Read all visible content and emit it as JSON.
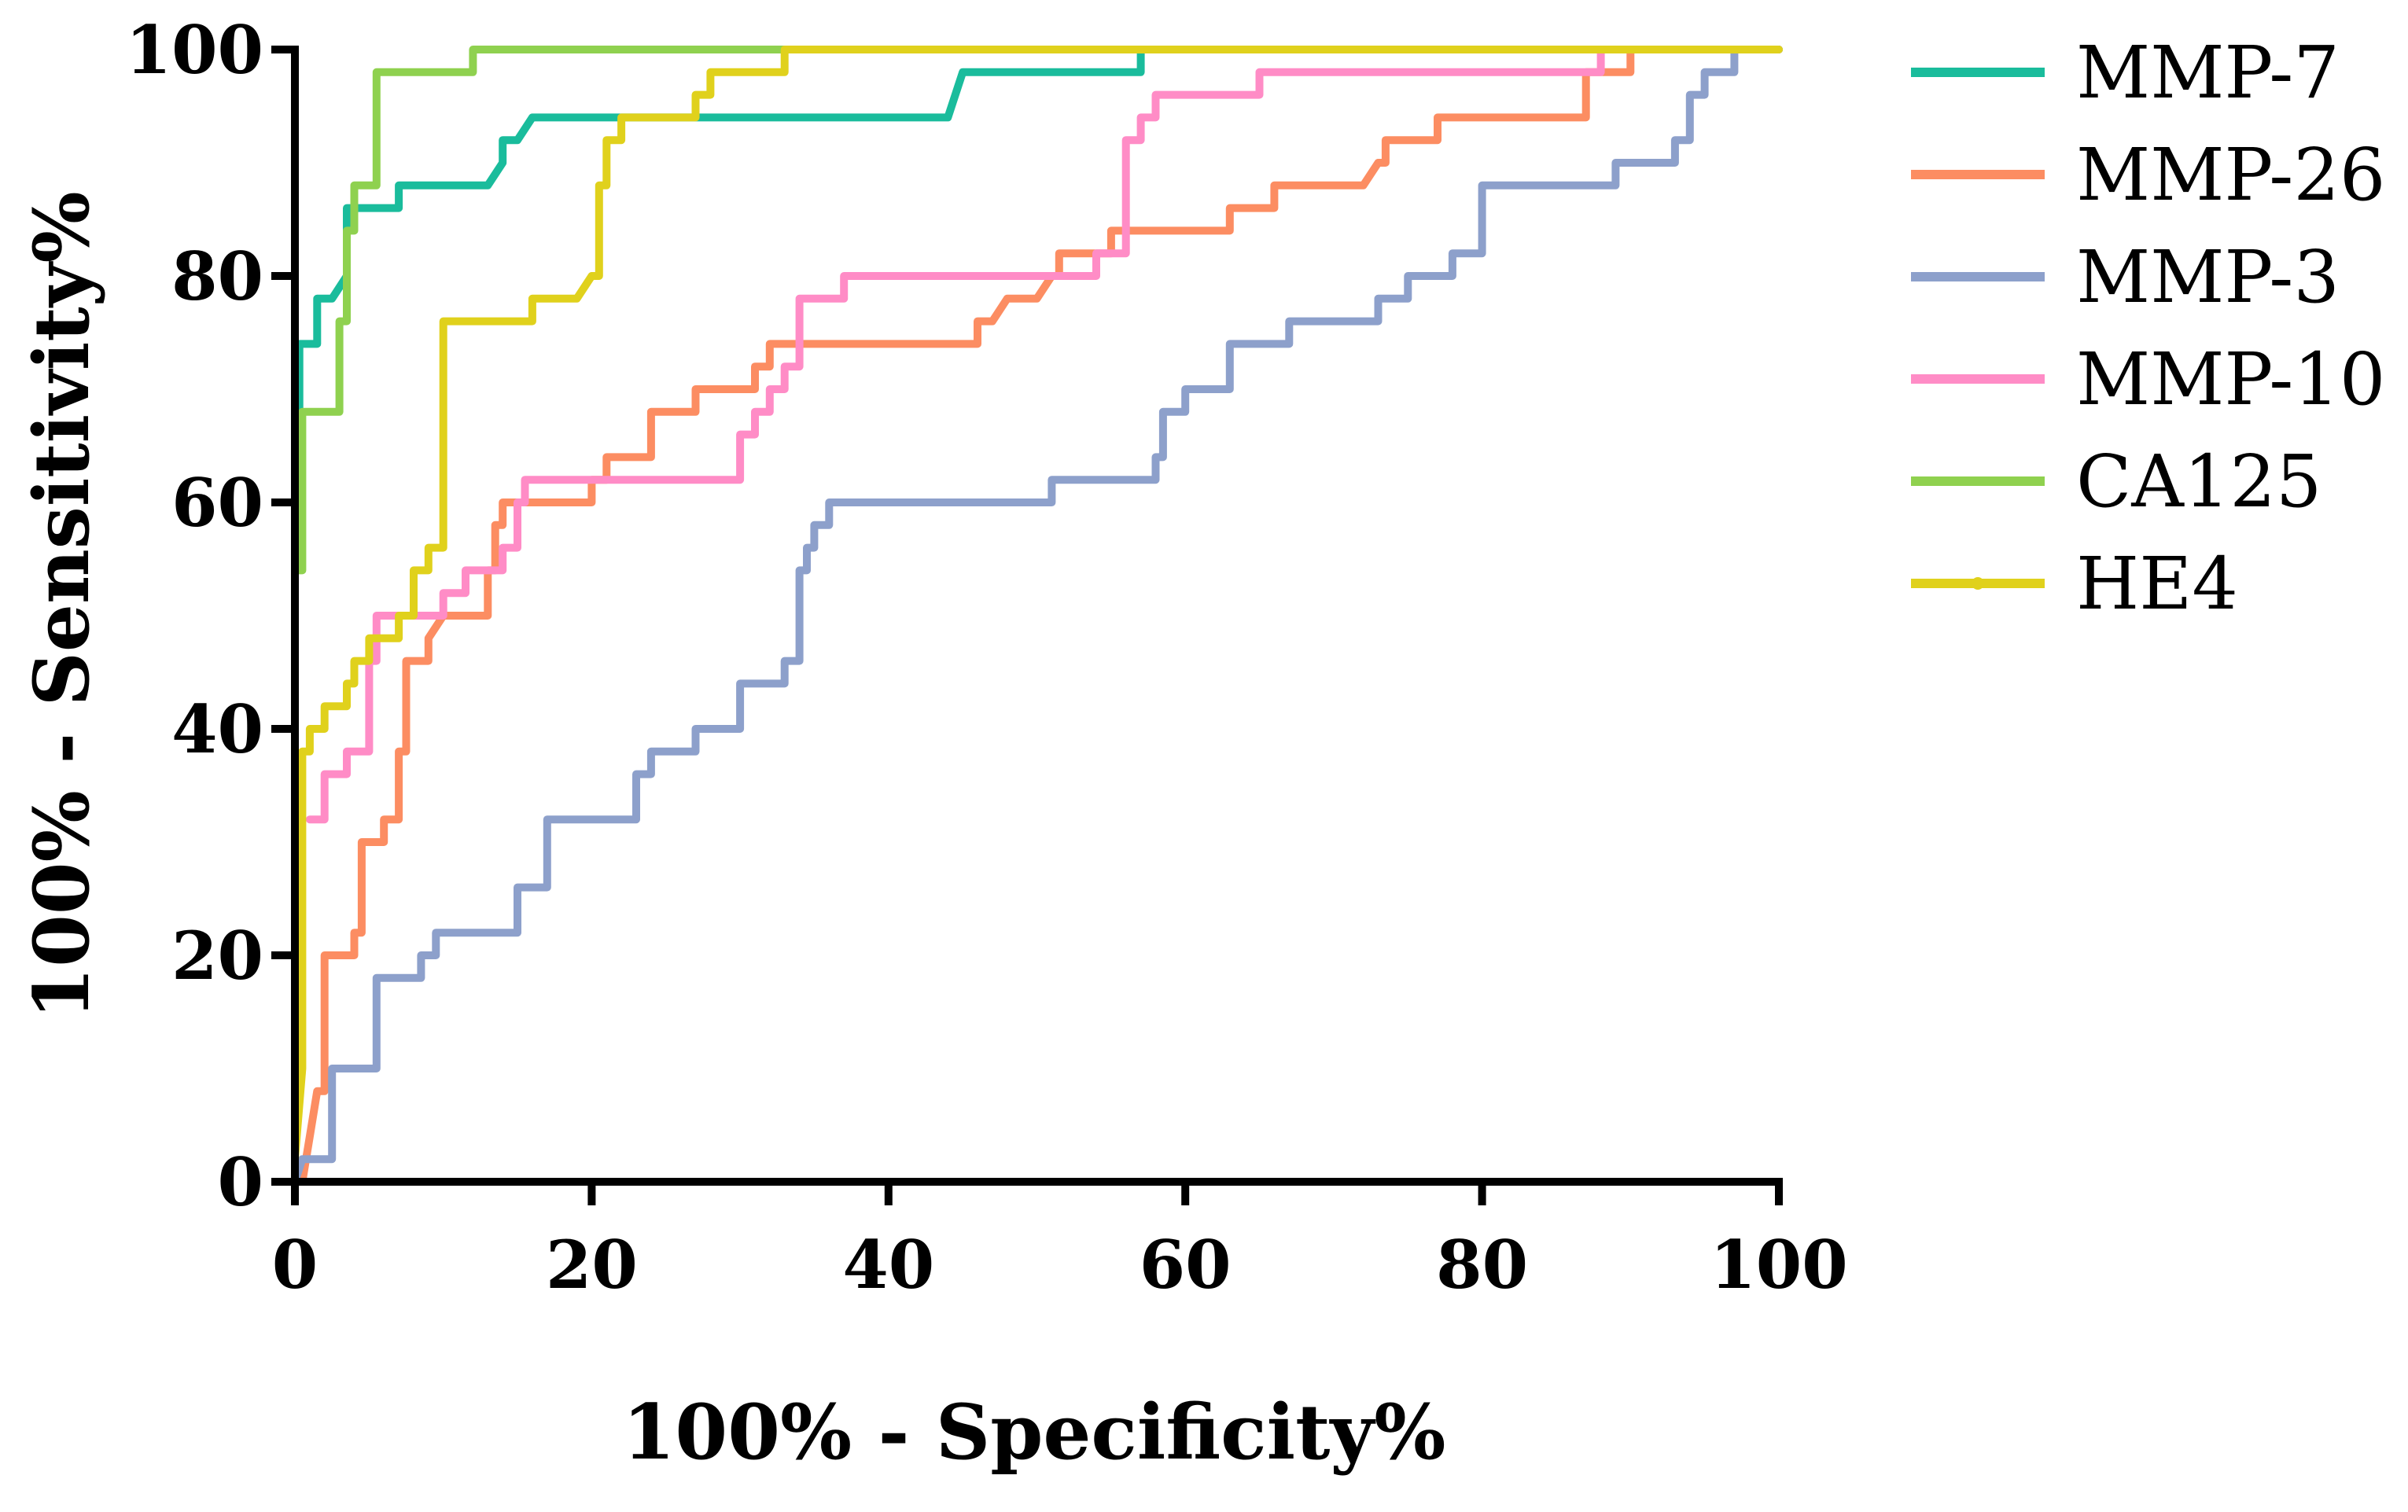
{
  "chart_data": {
    "type": "line",
    "xlabel": "100% - Specificity%",
    "ylabel": "100% - Sensitivity%",
    "xlim": [
      0,
      100
    ],
    "ylim": [
      0,
      100
    ],
    "xticks": [
      "0",
      "20",
      "40",
      "60",
      "80",
      "100"
    ],
    "yticks": [
      "0",
      "20",
      "40",
      "60",
      "80",
      "100"
    ],
    "grid": false,
    "legend_position": "right",
    "series": [
      {
        "name": "MMP-7",
        "color": "#1abc9c",
        "points": [
          [
            0,
            55
          ],
          [
            0,
            64
          ],
          [
            0,
            64
          ],
          [
            0.3,
            64
          ],
          [
            0.3,
            74
          ],
          [
            1.5,
            74
          ],
          [
            1.5,
            78
          ],
          [
            2.5,
            78
          ],
          [
            3.5,
            80
          ],
          [
            3.5,
            86
          ],
          [
            6,
            86
          ],
          [
            7,
            86
          ],
          [
            7,
            88
          ],
          [
            13,
            88
          ],
          [
            14,
            90
          ],
          [
            14,
            92
          ],
          [
            15,
            92
          ],
          [
            16,
            94
          ],
          [
            44,
            94
          ],
          [
            45,
            98
          ],
          [
            57,
            98
          ],
          [
            57,
            100
          ],
          [
            100,
            100
          ]
        ]
      },
      {
        "name": "MMP-26",
        "color": "#fc8d62",
        "points": [
          [
            0.5,
            0
          ],
          [
            1,
            4
          ],
          [
            1.5,
            8
          ],
          [
            2,
            8
          ],
          [
            2,
            20
          ],
          [
            4,
            20
          ],
          [
            4,
            22
          ],
          [
            4.5,
            22
          ],
          [
            4.5,
            30
          ],
          [
            6,
            30
          ],
          [
            6,
            32
          ],
          [
            7,
            32
          ],
          [
            7,
            38
          ],
          [
            7.5,
            38
          ],
          [
            7.5,
            46
          ],
          [
            9,
            46
          ],
          [
            9,
            48
          ],
          [
            10,
            50
          ],
          [
            13,
            50
          ],
          [
            13,
            54
          ],
          [
            13.5,
            54
          ],
          [
            13.5,
            58
          ],
          [
            14,
            58
          ],
          [
            14,
            60
          ],
          [
            20,
            60
          ],
          [
            20,
            62
          ],
          [
            21,
            62
          ],
          [
            21,
            64
          ],
          [
            24,
            64
          ],
          [
            24,
            68
          ],
          [
            27,
            68
          ],
          [
            27,
            70
          ],
          [
            31,
            70
          ],
          [
            31,
            72
          ],
          [
            32,
            72
          ],
          [
            32,
            74
          ],
          [
            46,
            74
          ],
          [
            46,
            76
          ],
          [
            47,
            76
          ],
          [
            48,
            78
          ],
          [
            50,
            78
          ],
          [
            51,
            80
          ],
          [
            51.5,
            80
          ],
          [
            51.5,
            82
          ],
          [
            55,
            82
          ],
          [
            55,
            84
          ],
          [
            63,
            84
          ],
          [
            63,
            86
          ],
          [
            66,
            86
          ],
          [
            66,
            88
          ],
          [
            72,
            88
          ],
          [
            73,
            90
          ],
          [
            73.5,
            90
          ],
          [
            73.5,
            92
          ],
          [
            77,
            92
          ],
          [
            77,
            94
          ],
          [
            87,
            94
          ],
          [
            87,
            98
          ],
          [
            90,
            98
          ],
          [
            90,
            100
          ],
          [
            100,
            100
          ]
        ]
      },
      {
        "name": "MMP-3",
        "color": "#8da0cb",
        "points": [
          [
            0,
            0
          ],
          [
            0.5,
            2
          ],
          [
            2.5,
            2
          ],
          [
            2.5,
            10
          ],
          [
            5.5,
            10
          ],
          [
            5.5,
            18
          ],
          [
            8.5,
            18
          ],
          [
            8.5,
            20
          ],
          [
            9.5,
            20
          ],
          [
            9.5,
            22
          ],
          [
            15,
            22
          ],
          [
            15,
            26
          ],
          [
            17,
            26
          ],
          [
            17,
            32
          ],
          [
            23,
            32
          ],
          [
            23,
            36
          ],
          [
            24,
            36
          ],
          [
            24,
            38
          ],
          [
            27,
            38
          ],
          [
            27,
            40
          ],
          [
            30,
            40
          ],
          [
            30,
            44
          ],
          [
            33,
            44
          ],
          [
            33,
            46
          ],
          [
            34,
            46
          ],
          [
            34,
            54
          ],
          [
            34.5,
            54
          ],
          [
            34.5,
            56
          ],
          [
            35,
            56
          ],
          [
            35,
            58
          ],
          [
            36,
            58
          ],
          [
            36,
            60
          ],
          [
            51,
            60
          ],
          [
            51,
            62
          ],
          [
            58,
            62
          ],
          [
            58,
            64
          ],
          [
            58.5,
            64
          ],
          [
            58.5,
            68
          ],
          [
            60,
            68
          ],
          [
            60,
            70
          ],
          [
            63,
            70
          ],
          [
            63,
            74
          ],
          [
            67,
            74
          ],
          [
            67,
            76
          ],
          [
            73,
            76
          ],
          [
            73,
            78
          ],
          [
            75,
            78
          ],
          [
            75,
            80
          ],
          [
            78,
            80
          ],
          [
            78,
            82
          ],
          [
            80,
            82
          ],
          [
            80,
            88
          ],
          [
            89,
            88
          ],
          [
            89,
            90
          ],
          [
            93,
            90
          ],
          [
            93,
            92
          ],
          [
            94,
            92
          ],
          [
            94,
            96
          ],
          [
            95,
            96
          ],
          [
            95,
            98
          ],
          [
            97,
            98
          ],
          [
            97,
            100
          ],
          [
            100,
            100
          ]
        ]
      },
      {
        "name": "MMP-10",
        "color": "#ff8cc6",
        "points": [
          [
            1,
            32
          ],
          [
            2,
            32
          ],
          [
            2,
            36
          ],
          [
            3.5,
            36
          ],
          [
            3.5,
            38
          ],
          [
            5,
            38
          ],
          [
            5,
            46
          ],
          [
            5.5,
            46
          ],
          [
            5.5,
            50
          ],
          [
            10,
            50
          ],
          [
            10,
            52
          ],
          [
            11.5,
            52
          ],
          [
            11.5,
            54
          ],
          [
            14,
            54
          ],
          [
            14,
            56
          ],
          [
            15,
            56
          ],
          [
            15,
            60
          ],
          [
            15.5,
            60
          ],
          [
            15.5,
            62
          ],
          [
            30,
            62
          ],
          [
            30,
            66
          ],
          [
            31,
            66
          ],
          [
            31,
            68
          ],
          [
            32,
            68
          ],
          [
            32,
            70
          ],
          [
            33,
            70
          ],
          [
            33,
            72
          ],
          [
            34,
            72
          ],
          [
            34,
            78
          ],
          [
            37,
            78
          ],
          [
            37,
            80
          ],
          [
            54,
            80
          ],
          [
            54,
            82
          ],
          [
            56,
            82
          ],
          [
            56,
            92
          ],
          [
            57,
            92
          ],
          [
            57,
            94
          ],
          [
            58,
            94
          ],
          [
            58,
            96
          ],
          [
            65,
            96
          ],
          [
            65,
            98
          ],
          [
            88,
            98
          ],
          [
            88,
            100
          ],
          [
            100,
            100
          ]
        ]
      },
      {
        "name": "CA125",
        "color": "#8fd14f",
        "points": [
          [
            0,
            10
          ],
          [
            0,
            54
          ],
          [
            0.5,
            54
          ],
          [
            0.5,
            68
          ],
          [
            3,
            68
          ],
          [
            3,
            76
          ],
          [
            3.5,
            76
          ],
          [
            3.5,
            84
          ],
          [
            4,
            84
          ],
          [
            4,
            88
          ],
          [
            5.5,
            88
          ],
          [
            5.5,
            98
          ],
          [
            12,
            98
          ],
          [
            12,
            100
          ],
          [
            100,
            100
          ]
        ]
      },
      {
        "name": "HE4",
        "color": "#e0d11c",
        "points": [
          [
            0,
            2
          ],
          [
            0.5,
            10
          ],
          [
            0.5,
            38
          ],
          [
            1,
            38
          ],
          [
            1,
            40
          ],
          [
            2,
            40
          ],
          [
            2,
            42
          ],
          [
            3.5,
            42
          ],
          [
            3.5,
            44
          ],
          [
            4,
            44
          ],
          [
            4,
            46
          ],
          [
            5,
            46
          ],
          [
            5,
            48
          ],
          [
            7,
            48
          ],
          [
            7,
            50
          ],
          [
            8,
            50
          ],
          [
            8,
            54
          ],
          [
            9,
            54
          ],
          [
            9,
            56
          ],
          [
            10,
            56
          ],
          [
            10,
            76
          ],
          [
            16,
            76
          ],
          [
            16,
            78
          ],
          [
            19,
            78
          ],
          [
            19,
            78
          ],
          [
            20,
            80
          ],
          [
            20.5,
            80
          ],
          [
            20.5,
            88
          ],
          [
            21,
            88
          ],
          [
            21,
            92
          ],
          [
            22,
            92
          ],
          [
            22,
            94
          ],
          [
            27,
            94
          ],
          [
            27,
            96
          ],
          [
            28,
            96
          ],
          [
            28,
            98
          ],
          [
            31,
            98
          ],
          [
            31,
            98
          ],
          [
            33,
            98
          ],
          [
            33,
            100
          ],
          [
            100,
            100
          ]
        ]
      }
    ]
  }
}
